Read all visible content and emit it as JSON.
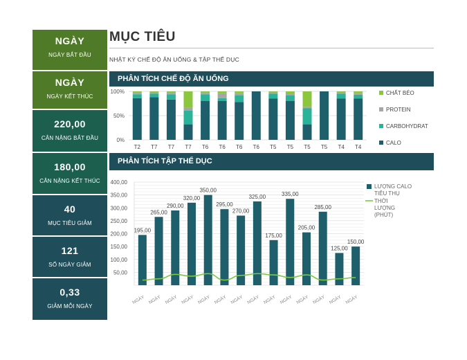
{
  "header": {
    "title": "MỤC TIÊU",
    "subtitle": "NHẬT KÝ CHẾ ĐỘ ĂN UỐNG & TẬP THỂ DỤC"
  },
  "sidebar": {
    "cards": [
      {
        "value": "NGÀY",
        "label": "NGÀY BẮT ĐẦU",
        "color": "#4f7a28"
      },
      {
        "value": "NGÀY",
        "label": "NGÀY KẾT THÚC",
        "color": "#4f7a28"
      },
      {
        "value": "220,00",
        "label": "CÂN NẶNG BẮT ĐẦU",
        "color": "#1d5f4e"
      },
      {
        "value": "180,00",
        "label": "CÂN NẶNG KẾT THÚC",
        "color": "#1d5f4e"
      },
      {
        "value": "40",
        "label": "MỤC TIÊU GIẢM",
        "color": "#1f4e5a"
      },
      {
        "value": "121",
        "label": "SỐ NGÀY GIẢM",
        "color": "#1f4e5a"
      },
      {
        "value": "0,33",
        "label": "GIẢM MỖI NGÀY",
        "color": "#1f4e5a"
      }
    ]
  },
  "diet_section": {
    "title": "PHÂN TÍCH CHẾ ĐỘ ĂN UỐNG"
  },
  "exercise_section": {
    "title": "PHÂN TÍCH TẬP THỂ DỤC"
  },
  "colors": {
    "calo": "#1f5f6b",
    "carb": "#2bb39a",
    "protein": "#a6a6a6",
    "fat": "#8cc63f",
    "line": "#7ac943"
  },
  "chart_data": [
    {
      "type": "bar",
      "stacked": "percent",
      "categories": [
        "T2",
        "T7",
        "T7",
        "T7",
        "T6",
        "T6",
        "T6",
        "T6",
        "T5",
        "T5",
        "T5",
        "T5",
        "T4",
        "T4"
      ],
      "series": [
        {
          "name": "CALO",
          "values": [
            86,
            88,
            83,
            32,
            80,
            80,
            78,
            100,
            85,
            80,
            32,
            100,
            85,
            85
          ]
        },
        {
          "name": "CARBOHYDRAT",
          "values": [
            8,
            7,
            11,
            28,
            14,
            6,
            14,
            0,
            10,
            12,
            33,
            0,
            10,
            8
          ]
        },
        {
          "name": "PROTEIN",
          "values": [
            3,
            2,
            3,
            7,
            3,
            10,
            4,
            0,
            2,
            3,
            3,
            0,
            2,
            3
          ]
        },
        {
          "name": "CHẤT BÉO",
          "values": [
            3,
            3,
            3,
            33,
            3,
            4,
            4,
            0,
            3,
            5,
            32,
            0,
            3,
            4
          ]
        }
      ],
      "yticks": [
        "100%",
        "50%",
        "0%"
      ],
      "ylim": [
        0,
        100
      ],
      "legend": "right"
    },
    {
      "type": "bar",
      "categories": [
        "NGÀY",
        "NGÀY",
        "NGÀY",
        "NGÀY",
        "NGÀY",
        "NGÀY",
        "NGÀY",
        "NGÀY",
        "NGÀY",
        "NGÀY",
        "NGÀY",
        "NGÀY",
        "NGÀY",
        "NGÀY"
      ],
      "series": [
        {
          "name": "LƯỢNG CALO TIÊU THỤ",
          "type": "bar",
          "values": [
            195,
            265,
            290,
            320,
            350,
            295,
            270,
            325,
            175,
            335,
            205,
            285,
            125,
            150
          ],
          "labels": [
            "195,00",
            "265,00",
            "290,00",
            "320,00",
            "350,00",
            "295,00",
            "270,00",
            "325,00",
            "175,00",
            "335,00",
            "205,00",
            "285,00",
            "125,00",
            "150,00"
          ]
        },
        {
          "name": "THỜI LƯỢNG (PHÚT)",
          "type": "line",
          "values": [
            20,
            25,
            42,
            35,
            45,
            20,
            38,
            45,
            40,
            30,
            40,
            20,
            25,
            30
          ]
        }
      ],
      "yticks": [
        "400,00",
        "350,00",
        "300,00",
        "250,00",
        "200,00",
        "150,00",
        "100,00",
        "50,00"
      ],
      "ylim": [
        0,
        400
      ],
      "legend": "right"
    }
  ]
}
